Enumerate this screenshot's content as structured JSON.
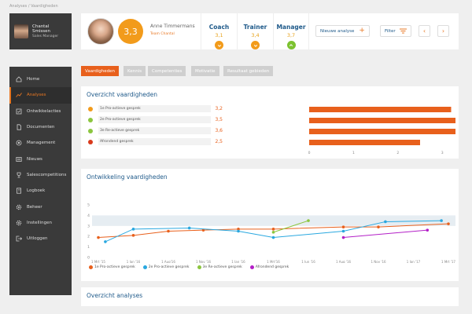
{
  "breadcrumb": "Analyses / Vaardigheden",
  "user": {
    "name": "Chantal Smissen",
    "role": "Sales Manager"
  },
  "nav": [
    {
      "label": "Home",
      "icon": "home-icon",
      "active": false
    },
    {
      "label": "Analyses",
      "icon": "chart-line-icon",
      "active": true
    },
    {
      "label": "Ontwikkelacties",
      "icon": "actions-icon",
      "active": false
    },
    {
      "label": "Documenten",
      "icon": "document-icon",
      "active": false
    },
    {
      "label": "Management",
      "icon": "management-icon",
      "active": false
    },
    {
      "label": "Nieuws",
      "icon": "news-icon",
      "active": false
    },
    {
      "label": "Salescompetitions",
      "icon": "trophy-icon",
      "active": false
    },
    {
      "label": "Logboek",
      "icon": "logbook-icon",
      "active": false
    },
    {
      "label": "Beheer",
      "icon": "gear-icon",
      "active": false
    },
    {
      "label": "Instellingen",
      "icon": "settings-icon",
      "active": false
    },
    {
      "label": "Uitloggen",
      "icon": "logout-icon",
      "active": false
    }
  ],
  "employee": {
    "score": "3,3",
    "name": "Anne Timmermans",
    "team": "Team Chantal"
  },
  "roles": [
    {
      "label": "Coach",
      "value": "3,1",
      "status": "down"
    },
    {
      "label": "Trainer",
      "value": "3,4",
      "status": "down"
    },
    {
      "label": "Manager",
      "value": "3,7",
      "status": "up"
    }
  ],
  "actions": {
    "new_analysis": "Nieuwe analyse",
    "filter": "Filter"
  },
  "tabs": [
    "Vaardigheden",
    "Kennis",
    "Competenties",
    "Motivatie",
    "Resultaat gebieden"
  ],
  "overview": {
    "title": "Overzicht vaardigheden"
  },
  "development": {
    "title": "Ontwikkeling vaardigheden"
  },
  "analyses": {
    "title": "Overzicht analyses"
  },
  "colors": {
    "accent": "#e8601c",
    "orange": "#e8601c",
    "blue": "#29a8e0",
    "green": "#8cc63f",
    "purple": "#b31fc7",
    "red": "#d93a1c",
    "title": "#1f5a8a"
  },
  "chart_data": [
    {
      "type": "bar",
      "orientation": "horizontal",
      "categories": [
        "1e Pro-actieve gesprek",
        "2e Pro-actieve gesprek",
        "3e Re-actieve gesprek",
        "Afrondend gesprek"
      ],
      "values": [
        3.2,
        3.5,
        3.6,
        2.5
      ],
      "value_labels": [
        "3,2",
        "3,5",
        "3,6",
        "2,5"
      ],
      "dot_colors": [
        "#f29b1b",
        "#8cc63f",
        "#8cc63f",
        "#d93a1c"
      ],
      "bar_color": "#e8601c",
      "xlim": [
        0,
        5
      ],
      "xticks": [
        "0",
        "1",
        "2",
        "3",
        "4",
        "5"
      ],
      "highlight_band": [
        3.4,
        3.8
      ]
    },
    {
      "type": "line",
      "ylim": [
        0,
        5
      ],
      "yticks": [
        "0",
        "1",
        "2",
        "3",
        "4",
        "5"
      ],
      "x": [
        "1 Mrt '15",
        "1 Jan '16",
        "1 Aug'16",
        "1 Nov '16",
        "1 Jan '16",
        "1 Mrt'16",
        "1 Jun '16",
        "1 Aug '16",
        "1 Nov '16",
        "1 Jan '17",
        "1 Mrt '17"
      ],
      "highlight_band": [
        3,
        4
      ],
      "series": [
        {
          "name": "1e Pro-actieve gesprek",
          "color": "#e8601c",
          "points": [
            [
              0,
              1.9
            ],
            [
              1,
              2.1
            ],
            [
              2,
              2.5
            ],
            [
              3,
              2.6
            ],
            [
              4,
              2.7
            ],
            [
              5,
              2.7
            ],
            [
              7,
              2.9
            ],
            [
              8,
              2.9
            ],
            [
              10,
              3.2
            ]
          ]
        },
        {
          "name": "2e Pro-actieve gesprek",
          "color": "#29a8e0",
          "points": [
            [
              0.2,
              1.5
            ],
            [
              1,
              2.7
            ],
            [
              2.6,
              2.8
            ],
            [
              4,
              2.5
            ],
            [
              5,
              1.9
            ],
            [
              7,
              2.5
            ],
            [
              8.2,
              3.4
            ],
            [
              9.8,
              3.5
            ]
          ]
        },
        {
          "name": "3e Re-actieve gesprek",
          "color": "#8cc63f",
          "points": [
            [
              5,
              2.4
            ],
            [
              6,
              3.5
            ]
          ]
        },
        {
          "name": "Afrondend gesprek",
          "color": "#b31fc7",
          "points": [
            [
              7,
              1.9
            ],
            [
              9.4,
              2.6
            ]
          ]
        }
      ]
    }
  ]
}
